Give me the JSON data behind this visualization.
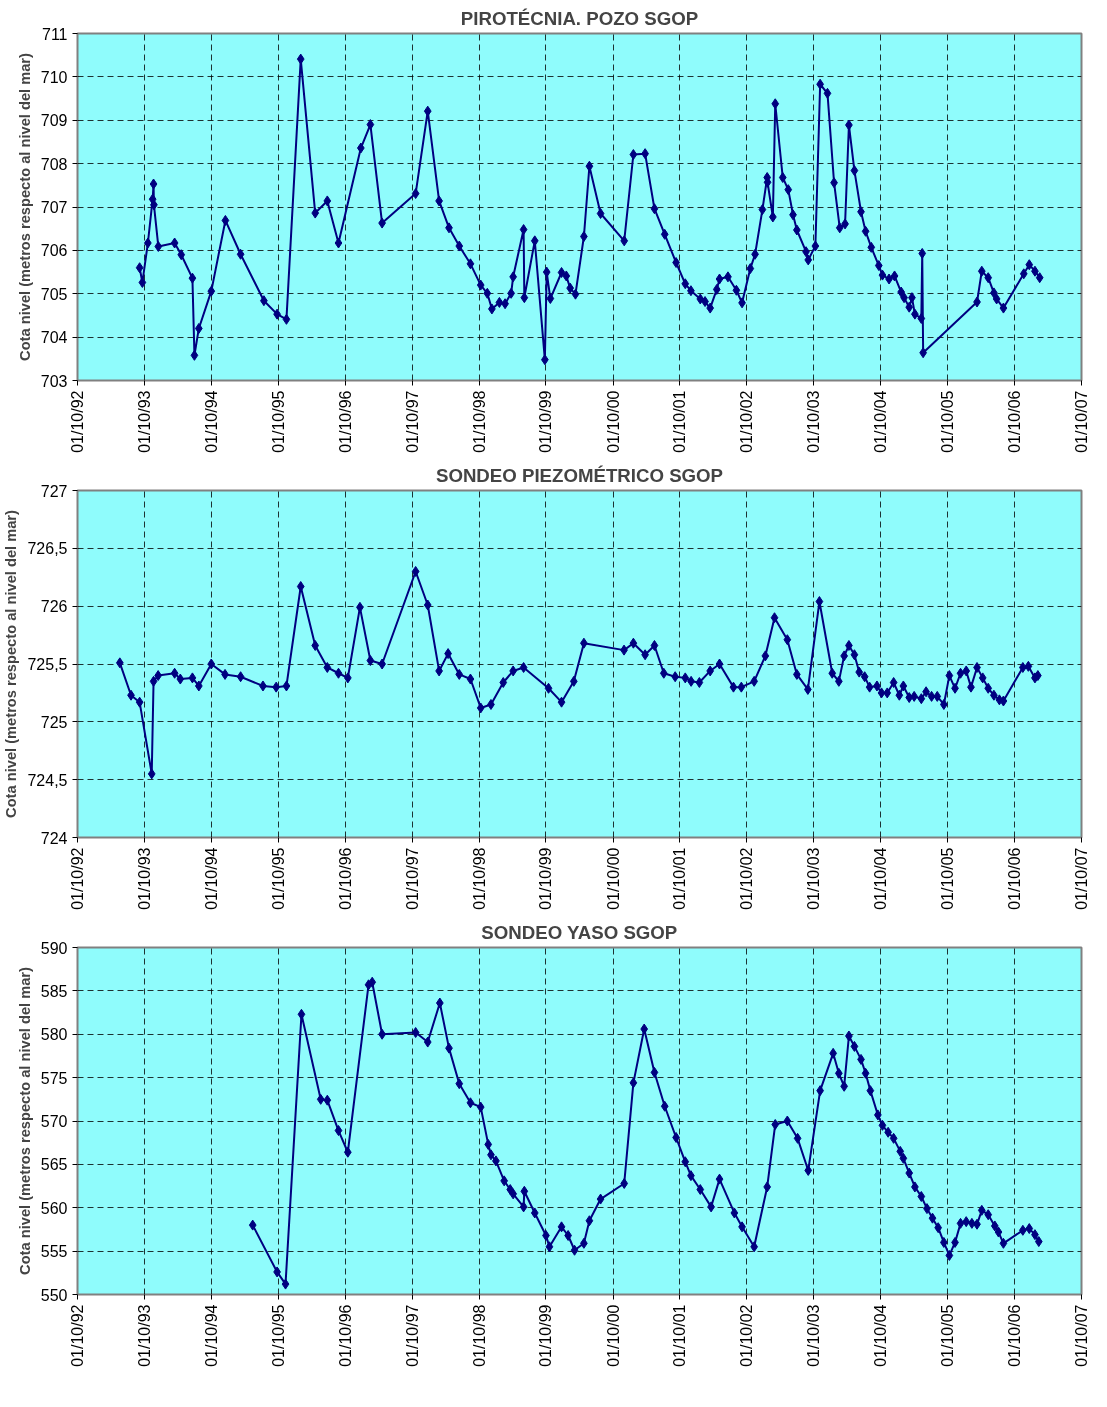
{
  "chart_data": [
    {
      "type": "line",
      "title": "PIROTÉCNIA. POZO SGOP",
      "ylabel": "Cota nivel (metros respecto al nivel del mar)",
      "marker": "diamond",
      "line_style": "solid",
      "grid": true,
      "x": [
        "1993-09-05",
        "1993-09-20",
        "1993-10-20",
        "1993-11-15",
        "1993-11-20",
        "1993-11-22",
        "1993-12-16",
        "1994-03-15",
        "1994-04-20",
        "1994-06-20",
        "1994-07-01",
        "1994-07-25",
        "1994-10-01",
        "1994-12-17",
        "1995-03-10",
        "1995-07-15",
        "1995-09-25",
        "1995-11-15",
        "1996-02-01",
        "1996-04-20",
        "1996-06-25",
        "1996-08-25",
        "1996-12-25",
        "1997-02-15",
        "1997-04-20",
        "1997-10-20",
        "1997-12-25",
        "1998-02-25",
        "1998-04-20",
        "1998-06-15",
        "1998-08-15",
        "1998-10-10",
        "1998-11-15",
        "1998-12-10",
        "1999-01-20",
        "1999-02-20",
        "1999-03-25",
        "1999-04-05",
        "1999-06-01",
        "1999-06-05",
        "1999-08-01",
        "1999-09-25",
        "1999-10-05",
        "1999-10-25",
        "1999-12-25",
        "2000-01-20",
        "2000-02-10",
        "2000-03-10",
        "2000-04-25",
        "2000-05-25",
        "2000-07-25",
        "2000-12-01",
        "2001-01-20",
        "2001-03-25",
        "2001-05-15",
        "2001-07-10",
        "2001-09-10",
        "2001-10-30",
        "2001-11-30",
        "2002-01-20",
        "2002-02-15",
        "2002-03-15",
        "2002-04-20",
        "2002-05-05",
        "2002-06-20",
        "2002-08-05",
        "2002-09-05",
        "2002-10-20",
        "2002-11-15",
        "2002-12-25",
        "2003-01-20",
        "2003-01-22",
        "2003-02-20",
        "2003-03-05",
        "2003-04-15",
        "2003-05-15",
        "2003-06-10",
        "2003-07-01",
        "2003-08-20",
        "2003-09-01",
        "2003-10-10",
        "2003-11-05",
        "2003-12-15",
        "2004-01-20",
        "2004-02-20",
        "2004-03-20",
        "2004-04-10",
        "2004-05-10",
        "2004-06-15",
        "2004-07-10",
        "2004-08-10",
        "2004-09-20",
        "2004-10-10",
        "2004-11-15",
        "2004-12-15",
        "2005-01-20",
        "2005-02-05",
        "2005-03-05",
        "2005-03-20",
        "2005-04-05",
        "2005-05-10",
        "2005-05-15",
        "2005-05-20",
        "2006-03-10",
        "2006-04-05",
        "2006-05-10",
        "2006-06-10",
        "2006-06-25",
        "2006-08-01",
        "2006-11-20",
        "2006-12-20",
        "2007-01-20",
        "2007-02-15"
      ],
      "series": [
        {
          "color": "#000080",
          "values": [
            705.6,
            705.26,
            706.17,
            707.18,
            707.53,
            707.05,
            706.09,
            706.17,
            705.9,
            705.36,
            703.58,
            704.2,
            705.06,
            706.69,
            705.91,
            704.84,
            704.53,
            704.41,
            710.41,
            706.86,
            707.14,
            706.17,
            708.36,
            708.9,
            706.63,
            707.31,
            709.21,
            707.14,
            706.52,
            706.1,
            705.69,
            705.2,
            705.01,
            704.65,
            704.8,
            704.77,
            705.01,
            705.39,
            706.48,
            704.91,
            706.22,
            703.48,
            705.5,
            704.89,
            705.49,
            705.41,
            705.13,
            704.99,
            706.32,
            707.94,
            706.85,
            706.22,
            708.21,
            708.23,
            706.96,
            706.37,
            705.72,
            705.23,
            705.07,
            704.88,
            704.82,
            704.67,
            705.1,
            705.34,
            705.39,
            705.08,
            704.79,
            705.58,
            705.91,
            706.94,
            707.68,
            707.57,
            706.77,
            709.38,
            707.68,
            707.4,
            706.82,
            706.47,
            705.97,
            705.78,
            706.1,
            709.83,
            709.62,
            707.56,
            706.52,
            706.61,
            708.89,
            707.84,
            706.89,
            706.44,
            706.07,
            705.65,
            705.43,
            705.34,
            705.41,
            705.04,
            704.91,
            704.69,
            704.91,
            704.53,
            704.43,
            705.93,
            703.64,
            704.81,
            705.52,
            705.37,
            705.02,
            704.88,
            704.67,
            705.46,
            705.67,
            705.52,
            705.37
          ]
        }
      ],
      "xlim": [
        "1992-10-01",
        "2007-10-01"
      ],
      "xticks": [
        {
          "value": "1992-10-01",
          "label": "01/10/92"
        },
        {
          "value": "1993-10-01",
          "label": "01/10/93"
        },
        {
          "value": "1994-10-01",
          "label": "01/10/94"
        },
        {
          "value": "1995-10-01",
          "label": "01/10/95"
        },
        {
          "value": "1996-10-01",
          "label": "01/10/96"
        },
        {
          "value": "1997-10-01",
          "label": "01/10/97"
        },
        {
          "value": "1998-10-01",
          "label": "01/10/98"
        },
        {
          "value": "1999-10-01",
          "label": "01/10/99"
        },
        {
          "value": "2000-10-01",
          "label": "01/10/00"
        },
        {
          "value": "2001-10-01",
          "label": "01/10/01"
        },
        {
          "value": "2002-10-01",
          "label": "01/10/02"
        },
        {
          "value": "2003-10-01",
          "label": "01/10/03"
        },
        {
          "value": "2004-10-01",
          "label": "01/10/04"
        },
        {
          "value": "2005-10-01",
          "label": "01/10/05"
        },
        {
          "value": "2006-10-01",
          "label": "01/10/06"
        },
        {
          "value": "2007-10-01",
          "label": "01/10/07"
        }
      ],
      "ylim": [
        703,
        711
      ],
      "yticks": [
        703,
        704,
        705,
        706,
        707,
        708,
        709,
        710,
        711
      ]
    },
    {
      "type": "line",
      "title": "SONDEO PIEZOMÉTRICO SGOP",
      "ylabel": "Cota nivel (metros respecto al nivel del mar)",
      "marker": "diamond",
      "line_style": "solid",
      "grid": true,
      "x": [
        "1993-05-20",
        "1993-07-20",
        "1993-09-05",
        "1993-11-10",
        "1993-11-20",
        "1993-12-15",
        "1994-03-15",
        "1994-04-15",
        "1994-06-20",
        "1994-07-25",
        "1994-10-01",
        "1994-12-15",
        "1995-03-10",
        "1995-07-10",
        "1995-09-20",
        "1995-11-15",
        "1996-02-01",
        "1996-04-20",
        "1996-06-25",
        "1996-08-25",
        "1996-10-15",
        "1996-12-20",
        "1997-02-15",
        "1997-04-20",
        "1997-10-20",
        "1997-12-25",
        "1998-02-25",
        "1998-04-15",
        "1998-06-15",
        "1998-08-15",
        "1998-10-10",
        "1998-12-05",
        "1999-02-10",
        "1999-04-05",
        "1999-06-01",
        "1999-10-15",
        "1999-12-25",
        "2000-03-01",
        "2000-04-25",
        "2000-11-30",
        "2001-01-20",
        "2001-03-25",
        "2001-05-15",
        "2001-07-05",
        "2001-09-05",
        "2001-10-30",
        "2001-12-01",
        "2002-01-15",
        "2002-03-15",
        "2002-05-05",
        "2002-07-20",
        "2002-09-01",
        "2002-11-10",
        "2003-01-10",
        "2003-03-01",
        "2003-05-10",
        "2003-07-01",
        "2003-08-30",
        "2003-11-01",
        "2004-01-10",
        "2004-02-15",
        "2004-03-15",
        "2004-04-10",
        "2004-05-10",
        "2004-06-05",
        "2004-07-05",
        "2004-08-01",
        "2004-09-10",
        "2004-10-05",
        "2004-11-05",
        "2004-12-10",
        "2005-01-10",
        "2005-02-01",
        "2005-03-05",
        "2005-04-01",
        "2005-05-10",
        "2005-06-05",
        "2005-07-05",
        "2005-08-05",
        "2005-09-10",
        "2005-10-10",
        "2005-11-10",
        "2005-12-10",
        "2006-01-10",
        "2006-02-05",
        "2006-03-10",
        "2006-04-10",
        "2006-05-10",
        "2006-06-10",
        "2006-07-10",
        "2006-08-01",
        "2006-11-15",
        "2006-12-15",
        "2007-01-20",
        "2007-02-05"
      ],
      "series": [
        {
          "color": "#000080",
          "values": [
            725.51,
            725.23,
            725.17,
            724.55,
            725.35,
            725.4,
            725.42,
            725.37,
            725.38,
            725.31,
            725.5,
            725.41,
            725.39,
            725.31,
            725.3,
            725.31,
            726.17,
            725.66,
            725.47,
            725.42,
            725.38,
            725.99,
            725.53,
            725.5,
            726.3,
            726.01,
            725.44,
            725.59,
            725.41,
            725.37,
            725.12,
            725.15,
            725.34,
            725.44,
            725.47,
            725.29,
            725.17,
            725.35,
            725.68,
            725.62,
            725.68,
            725.58,
            725.66,
            725.42,
            725.39,
            725.38,
            725.35,
            725.34,
            725.44,
            725.5,
            725.3,
            725.3,
            725.35,
            725.57,
            725.9,
            725.71,
            725.41,
            725.28,
            726.04,
            725.42,
            725.35,
            725.57,
            725.66,
            725.58,
            725.43,
            725.39,
            725.3,
            725.31,
            725.25,
            725.25,
            725.34,
            725.23,
            725.31,
            725.21,
            725.22,
            725.2,
            725.26,
            725.22,
            725.22,
            725.15,
            725.4,
            725.29,
            725.42,
            725.44,
            725.3,
            725.47,
            725.38,
            725.29,
            725.23,
            725.19,
            725.18,
            725.47,
            725.48,
            725.38,
            725.4
          ]
        }
      ],
      "xlim": [
        "1992-10-01",
        "2007-10-01"
      ],
      "xticks": [
        {
          "value": "1992-10-01",
          "label": "01/10/92"
        },
        {
          "value": "1993-10-01",
          "label": "01/10/93"
        },
        {
          "value": "1994-10-01",
          "label": "01/10/94"
        },
        {
          "value": "1995-10-01",
          "label": "01/10/95"
        },
        {
          "value": "1996-10-01",
          "label": "01/10/96"
        },
        {
          "value": "1997-10-01",
          "label": "01/10/97"
        },
        {
          "value": "1998-10-01",
          "label": "01/10/98"
        },
        {
          "value": "1999-10-01",
          "label": "01/10/99"
        },
        {
          "value": "2000-10-01",
          "label": "01/10/00"
        },
        {
          "value": "2001-10-01",
          "label": "01/10/01"
        },
        {
          "value": "2002-10-01",
          "label": "01/10/02"
        },
        {
          "value": "2003-10-01",
          "label": "01/10/03"
        },
        {
          "value": "2004-10-01",
          "label": "01/10/04"
        },
        {
          "value": "2005-10-01",
          "label": "01/10/05"
        },
        {
          "value": "2006-10-01",
          "label": "01/10/06"
        },
        {
          "value": "2007-10-01",
          "label": "01/10/07"
        }
      ],
      "ylim": [
        724,
        727
      ],
      "yticks": [
        724,
        {
          "value": 724.5,
          "label": "724,5"
        },
        725,
        {
          "value": 725.5,
          "label": "725,5"
        },
        726,
        {
          "value": 726.5,
          "label": "726,5"
        },
        727
      ]
    },
    {
      "type": "line",
      "title": "SONDEO YASO SGOP",
      "ylabel": "Cota nivel (metros respecto al nivel del mar)",
      "marker": "diamond",
      "line_style": "solid",
      "grid": true,
      "x": [
        "1995-05-15",
        "1995-09-25",
        "1995-11-10",
        "1996-02-05",
        "1996-05-20",
        "1996-06-25",
        "1996-08-25",
        "1996-10-15",
        "1997-02-05",
        "1997-02-25",
        "1997-04-20",
        "1997-10-20",
        "1997-12-25",
        "1998-03-01",
        "1998-04-20",
        "1998-06-15",
        "1998-08-15",
        "1998-10-10",
        "1998-11-20",
        "1998-12-05",
        "1999-01-01",
        "1999-02-15",
        "1999-03-20",
        "1999-04-05",
        "1999-06-01",
        "1999-06-05",
        "1999-08-01",
        "1999-10-01",
        "1999-10-20",
        "1999-12-25",
        "2000-01-30",
        "2000-03-05",
        "2000-04-25",
        "2000-05-25",
        "2000-07-25",
        "2000-12-01",
        "2001-01-20",
        "2001-03-20",
        "2001-05-15",
        "2001-07-10",
        "2001-09-10",
        "2001-10-30",
        "2001-11-30",
        "2002-01-20",
        "2002-03-20",
        "2002-05-05",
        "2002-07-25",
        "2002-09-05",
        "2002-11-10",
        "2003-01-20",
        "2003-03-05",
        "2003-05-10",
        "2003-07-05",
        "2003-09-01",
        "2003-11-05",
        "2004-01-15",
        "2004-02-15",
        "2004-03-15",
        "2004-04-10",
        "2004-05-10",
        "2004-06-15",
        "2004-07-10",
        "2004-08-05",
        "2004-09-15",
        "2004-10-10",
        "2004-11-10",
        "2004-12-10",
        "2005-01-15",
        "2005-02-01",
        "2005-03-05",
        "2005-04-05",
        "2005-05-10",
        "2005-06-10",
        "2005-07-10",
        "2005-08-10",
        "2005-09-10",
        "2005-10-10",
        "2005-11-10",
        "2005-12-10",
        "2006-01-10",
        "2006-02-10",
        "2006-03-10",
        "2006-04-05",
        "2006-05-10",
        "2006-06-15",
        "2006-07-05",
        "2006-08-01",
        "2006-11-15",
        "2006-12-20",
        "2007-01-20",
        "2007-02-10"
      ],
      "series": [
        {
          "color": "#000080",
          "values": [
            558.0,
            552.6,
            551.2,
            582.3,
            572.5,
            572.4,
            568.9,
            566.4,
            585.7,
            586.0,
            580.0,
            580.2,
            579.1,
            583.6,
            578.4,
            574.3,
            572.1,
            571.6,
            567.3,
            566.1,
            565.4,
            563.1,
            562.1,
            561.6,
            560.1,
            561.9,
            559.4,
            556.8,
            555.5,
            557.8,
            556.8,
            555.1,
            555.9,
            558.5,
            561.0,
            562.8,
            574.4,
            580.6,
            575.6,
            571.7,
            568.1,
            565.3,
            563.7,
            562.1,
            560.1,
            563.3,
            559.4,
            557.8,
            555.5,
            562.4,
            569.6,
            570.0,
            568.0,
            564.3,
            573.5,
            577.8,
            575.5,
            574.0,
            579.8,
            578.6,
            577.1,
            575.5,
            573.5,
            570.7,
            569.5,
            568.7,
            568.0,
            566.5,
            565.7,
            564.0,
            562.4,
            561.3,
            559.9,
            558.8,
            557.7,
            556.0,
            554.5,
            556.0,
            558.2,
            558.4,
            558.2,
            558.1,
            559.7,
            559.2,
            557.9,
            557.2,
            555.9,
            557.4,
            557.6,
            556.9,
            556.1
          ]
        }
      ],
      "xlim": [
        "1992-10-01",
        "2007-10-01"
      ],
      "xticks": [
        {
          "value": "1992-10-01",
          "label": "01/10/92"
        },
        {
          "value": "1993-10-01",
          "label": "01/10/93"
        },
        {
          "value": "1994-10-01",
          "label": "01/10/94"
        },
        {
          "value": "1995-10-01",
          "label": "01/10/95"
        },
        {
          "value": "1996-10-01",
          "label": "01/10/96"
        },
        {
          "value": "1997-10-01",
          "label": "01/10/97"
        },
        {
          "value": "1998-10-01",
          "label": "01/10/98"
        },
        {
          "value": "1999-10-01",
          "label": "01/10/99"
        },
        {
          "value": "2000-10-01",
          "label": "01/10/00"
        },
        {
          "value": "2001-10-01",
          "label": "01/10/01"
        },
        {
          "value": "2002-10-01",
          "label": "01/10/02"
        },
        {
          "value": "2003-10-01",
          "label": "01/10/03"
        },
        {
          "value": "2004-10-01",
          "label": "01/10/04"
        },
        {
          "value": "2005-10-01",
          "label": "01/10/05"
        },
        {
          "value": "2006-10-01",
          "label": "01/10/06"
        },
        {
          "value": "2007-10-01",
          "label": "01/10/07"
        }
      ],
      "ylim": [
        550,
        590
      ],
      "yticks": [
        550,
        555,
        560,
        565,
        570,
        575,
        580,
        585,
        590
      ]
    }
  ]
}
